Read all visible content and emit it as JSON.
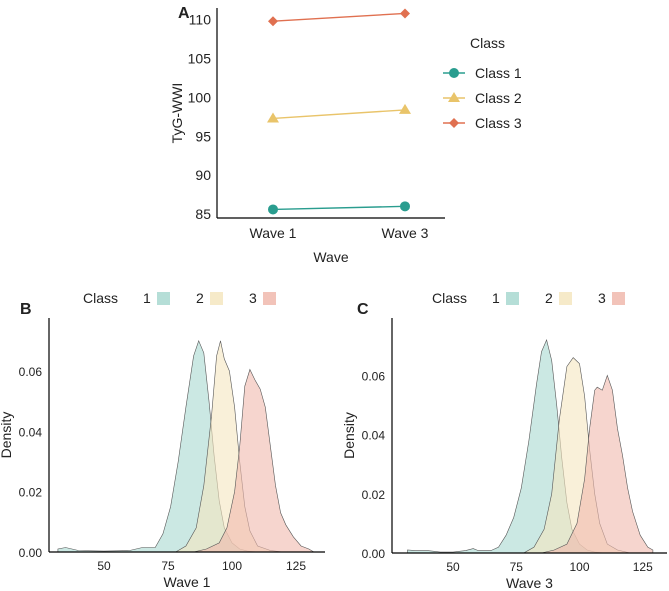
{
  "chart_data": [
    {
      "panel": "A",
      "type": "line",
      "xlabel": "Wave",
      "ylabel": "TyG-WWI",
      "categories": [
        "Wave 1",
        "Wave 3"
      ],
      "ylim": [
        84.5,
        111.5
      ],
      "yticks": [
        85,
        90,
        95,
        100,
        105,
        110
      ],
      "legend_title": "Class",
      "legend_position": "right",
      "series": [
        {
          "name": "Class 1",
          "marker": "circle",
          "color": "#2a9d8f",
          "values": [
            85.6,
            86.0
          ]
        },
        {
          "name": "Class 2",
          "marker": "triangle",
          "color": "#e9c46a",
          "values": [
            97.3,
            98.4
          ]
        },
        {
          "name": "Class 3",
          "marker": "diamond",
          "color": "#e07050",
          "values": [
            109.8,
            110.8
          ]
        }
      ]
    },
    {
      "panel": "B",
      "type": "area",
      "xlabel": "Wave 1",
      "ylabel": "Density",
      "xlim": [
        28,
        136
      ],
      "ylim": [
        0,
        0.074
      ],
      "xticks": [
        50,
        75,
        100,
        125
      ],
      "yticks": [
        "0.00",
        "0.02",
        "0.04",
        "0.06"
      ],
      "legend_title": "Class",
      "legend_position": "top",
      "series": [
        {
          "name": "1",
          "color": "#a8d8d0",
          "x": [
            32,
            35,
            40,
            50,
            60,
            65,
            70,
            73,
            76,
            79,
            82,
            85,
            87,
            89,
            91,
            93,
            95,
            97,
            100,
            103,
            106,
            110
          ],
          "y": [
            0.001,
            0.0015,
            0.0005,
            0.0003,
            0.0005,
            0.0015,
            0.0015,
            0.006,
            0.015,
            0.03,
            0.048,
            0.065,
            0.07,
            0.066,
            0.05,
            0.032,
            0.017,
            0.008,
            0.003,
            0.001,
            0.0003,
            0
          ]
        },
        {
          "name": "2",
          "color": "#f5e6bf",
          "x": [
            78,
            82,
            86,
            89,
            92,
            94,
            95.5,
            97,
            99,
            101,
            103,
            105,
            107,
            110,
            115,
            120
          ],
          "y": [
            0,
            0.002,
            0.008,
            0.022,
            0.045,
            0.065,
            0.07,
            0.064,
            0.06,
            0.048,
            0.03,
            0.015,
            0.007,
            0.002,
            0.0005,
            0
          ]
        },
        {
          "name": "3",
          "color": "#f0b9ad",
          "x": [
            85,
            90,
            95,
            98,
            101,
            103,
            105,
            107,
            109,
            111,
            113,
            115,
            117,
            119,
            121,
            124,
            127,
            130,
            132
          ],
          "y": [
            0,
            0.001,
            0.003,
            0.008,
            0.02,
            0.035,
            0.055,
            0.0605,
            0.057,
            0.054,
            0.048,
            0.035,
            0.022,
            0.013,
            0.009,
            0.005,
            0.002,
            0.001,
            0
          ]
        }
      ]
    },
    {
      "panel": "C",
      "type": "area",
      "xlabel": "Wave 3",
      "ylabel": "Density",
      "xlim": [
        28,
        136
      ],
      "ylim": [
        0,
        0.076
      ],
      "xticks": [
        50,
        75,
        100,
        125
      ],
      "yticks": [
        "0.00",
        "0.02",
        "0.04",
        "0.06"
      ],
      "legend_title": "Class",
      "legend_position": "top",
      "series": [
        {
          "name": "1",
          "color": "#a8d8d0",
          "x": [
            32,
            35,
            40,
            45,
            50,
            55,
            58,
            60,
            65,
            68,
            71,
            74,
            77,
            80,
            83,
            85,
            87,
            89,
            91,
            93,
            95,
            97,
            100,
            103,
            106,
            110
          ],
          "y": [
            0.001,
            0.0008,
            0.0008,
            0.0003,
            0.0003,
            0.0008,
            0.0015,
            0.0008,
            0.0008,
            0.002,
            0.006,
            0.012,
            0.022,
            0.038,
            0.057,
            0.068,
            0.072,
            0.065,
            0.05,
            0.032,
            0.017,
            0.008,
            0.003,
            0.001,
            0.0003,
            0
          ]
        },
        {
          "name": "2",
          "color": "#f5e6bf",
          "x": [
            78,
            82,
            86,
            89,
            92,
            95,
            97.5,
            100,
            102,
            104,
            106,
            108,
            111,
            115,
            120
          ],
          "y": [
            0,
            0.002,
            0.008,
            0.02,
            0.045,
            0.063,
            0.066,
            0.064,
            0.053,
            0.035,
            0.02,
            0.01,
            0.003,
            0.001,
            0
          ]
        },
        {
          "name": "3",
          "color": "#f0b9ad",
          "x": [
            85,
            90,
            95,
            99,
            102,
            104,
            106,
            107,
            109,
            111,
            113,
            115,
            117,
            119,
            121,
            124,
            127,
            129
          ],
          "y": [
            0,
            0.001,
            0.003,
            0.01,
            0.025,
            0.042,
            0.055,
            0.056,
            0.055,
            0.06,
            0.055,
            0.042,
            0.033,
            0.022,
            0.014,
            0.006,
            0.002,
            0.001
          ]
        }
      ]
    }
  ]
}
